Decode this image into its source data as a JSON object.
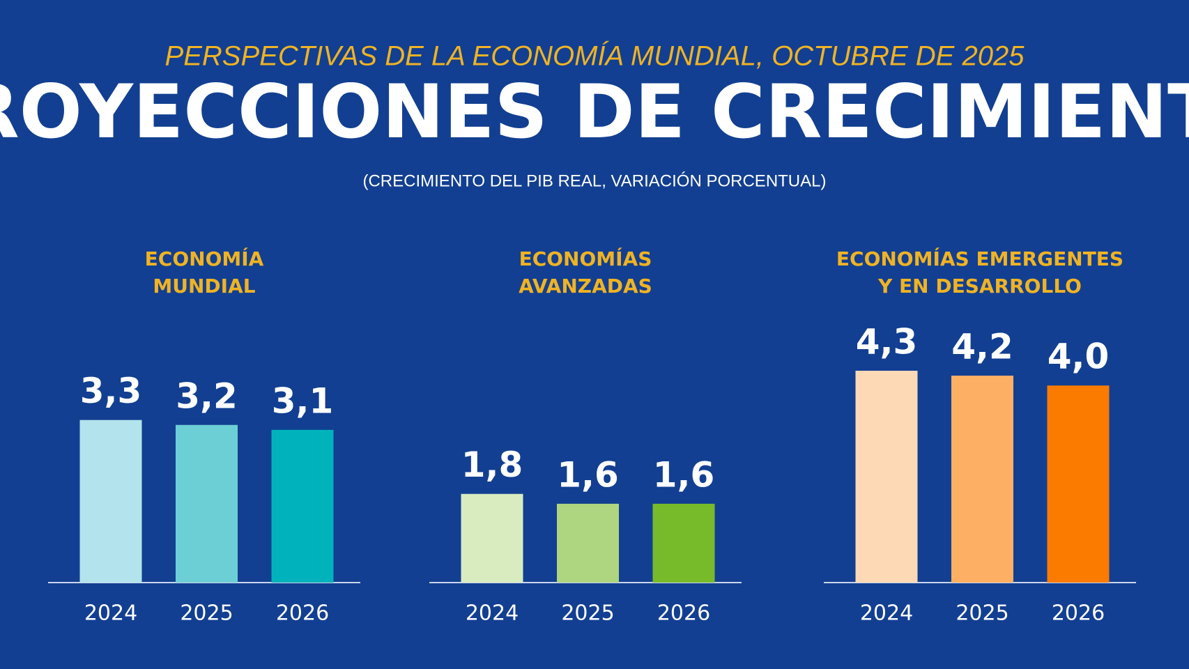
{
  "header": {
    "kicker": "PERSPECTIVAS DE LA ECONOMÍA MUNDIAL, OCTUBRE DE 2025",
    "title": "PROYECCIONES DE CRECIMIENTO",
    "subtitle": "(CRECIMIENTO DEL PIB REAL, VARIACIÓN PORCENTUAL)"
  },
  "chart_data": [
    {
      "type": "bar",
      "title": [
        "ECONOMÍA",
        "MUNDIAL"
      ],
      "categories": [
        "2024",
        "2025",
        "2026"
      ],
      "values": [
        3.3,
        3.2,
        3.1
      ],
      "value_labels": [
        "3,3",
        "3,2",
        "3,1"
      ],
      "colors": [
        "#b3e3ec",
        "#6dcfd6",
        "#00b2bb"
      ]
    },
    {
      "type": "bar",
      "title": [
        "ECONOMÍAS",
        "AVANZADAS"
      ],
      "categories": [
        "2024",
        "2025",
        "2026"
      ],
      "values": [
        1.8,
        1.6,
        1.6
      ],
      "value_labels": [
        "1,8",
        "1,6",
        "1,6"
      ],
      "colors": [
        "#d9ecc0",
        "#aed57f",
        "#78bb2a"
      ]
    },
    {
      "type": "bar",
      "title": [
        "ECONOMÍAS EMERGENTES",
        "Y EN DESARROLLO"
      ],
      "categories": [
        "2024",
        "2025",
        "2026"
      ],
      "values": [
        4.3,
        4.2,
        4.0
      ],
      "value_labels": [
        "4,3",
        "4,2",
        "4,0"
      ],
      "colors": [
        "#fdd9b5",
        "#fdb063",
        "#fa7b00"
      ]
    }
  ]
}
